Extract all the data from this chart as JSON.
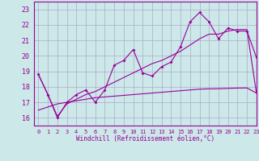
{
  "xlabel": "Windchill (Refroidissement éolien,°C)",
  "background_color": "#cce8e8",
  "grid_color": "#aaaacc",
  "line_color": "#990099",
  "xlim": [
    -0.5,
    23
  ],
  "ylim": [
    15.5,
    23.5
  ],
  "yticks": [
    16,
    17,
    18,
    19,
    20,
    21,
    22,
    23
  ],
  "xticks": [
    0,
    1,
    2,
    3,
    4,
    5,
    6,
    7,
    8,
    9,
    10,
    11,
    12,
    13,
    14,
    15,
    16,
    17,
    18,
    19,
    20,
    21,
    22,
    23
  ],
  "x_main": [
    0,
    1,
    2,
    3,
    4,
    5,
    6,
    7,
    8,
    9,
    10,
    11,
    12,
    13,
    14,
    15,
    16,
    17,
    18,
    19,
    20,
    21,
    22,
    23
  ],
  "y_main": [
    18.8,
    17.5,
    16.0,
    17.0,
    17.5,
    17.8,
    17.0,
    17.8,
    19.4,
    19.7,
    20.4,
    18.9,
    18.7,
    19.3,
    19.6,
    20.6,
    22.2,
    22.8,
    22.2,
    21.1,
    21.8,
    21.6,
    21.6,
    19.9
  ],
  "y_trend1": [
    16.5,
    16.7,
    16.9,
    17.0,
    17.1,
    17.2,
    17.3,
    17.35,
    17.4,
    17.45,
    17.5,
    17.55,
    17.6,
    17.65,
    17.7,
    17.75,
    17.8,
    17.85,
    17.87,
    17.88,
    17.9,
    17.92,
    17.93,
    17.6
  ],
  "y_trend2": [
    18.8,
    17.5,
    16.1,
    16.9,
    17.2,
    17.5,
    17.7,
    18.0,
    18.3,
    18.6,
    18.9,
    19.2,
    19.5,
    19.7,
    20.0,
    20.3,
    20.7,
    21.1,
    21.4,
    21.4,
    21.6,
    21.7,
    21.7,
    17.6
  ]
}
